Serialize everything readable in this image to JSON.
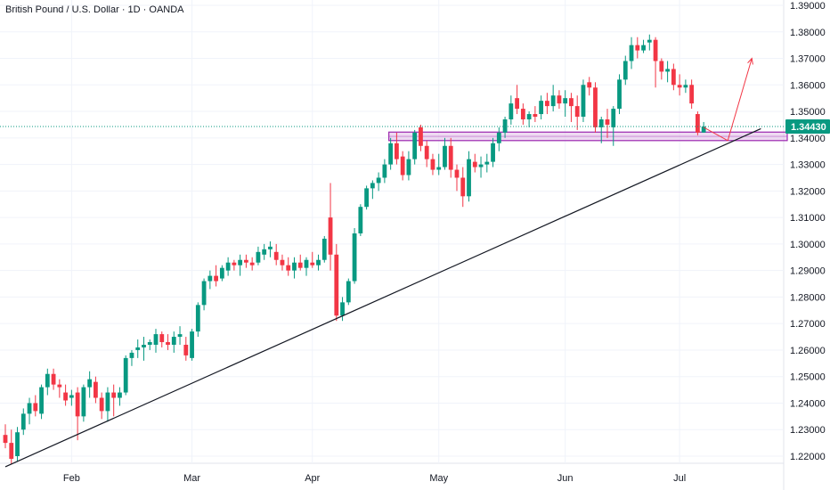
{
  "header": {
    "title": "British Pound / U.S. Dollar · 1D · OANDA"
  },
  "colors": {
    "up": "#089981",
    "down": "#f23645",
    "zone_fill": "#e1bee7",
    "zone_stroke": "#9c27b0",
    "trendline": "#131722",
    "projection": "#f23645",
    "price_line": "#089981",
    "badge": "#089981",
    "grid": "#f0f3fa"
  },
  "chart_data": {
    "type": "candlestick",
    "symbol": "British Pound / U.S. Dollar",
    "interval": "1D",
    "source": "OANDA",
    "ylim": [
      1.214,
      1.3915
    ],
    "y_ticks": [
      "1.22000",
      "1.23000",
      "1.24000",
      "1.25000",
      "1.26000",
      "1.27000",
      "1.28000",
      "1.29000",
      "1.30000",
      "1.31000",
      "1.32000",
      "1.33000",
      "1.34000",
      "1.35000",
      "1.36000",
      "1.37000",
      "1.38000",
      "1.39000"
    ],
    "x_ticks": [
      {
        "label": "Feb",
        "index": 11
      },
      {
        "label": "Mar",
        "index": 31
      },
      {
        "label": "Apr",
        "index": 51
      },
      {
        "label": "May",
        "index": 72
      },
      {
        "label": "Jun",
        "index": 93
      },
      {
        "label": "Jul",
        "index": 112
      }
    ],
    "candles": [
      [
        1.228,
        1.232,
        1.223,
        1.225
      ],
      [
        1.225,
        1.23,
        1.217,
        1.219
      ],
      [
        1.22,
        1.231,
        1.218,
        1.229
      ],
      [
        1.23,
        1.238,
        1.228,
        1.236
      ],
      [
        1.236,
        1.242,
        1.232,
        1.24
      ],
      [
        1.24,
        1.243,
        1.235,
        1.237
      ],
      [
        1.236,
        1.247,
        1.234,
        1.246
      ],
      [
        1.246,
        1.253,
        1.243,
        1.251
      ],
      [
        1.251,
        1.253,
        1.245,
        1.247
      ],
      [
        1.247,
        1.249,
        1.242,
        1.246
      ],
      [
        1.244,
        1.247,
        1.239,
        1.241
      ],
      [
        1.242,
        1.245,
        1.239,
        1.243
      ],
      [
        1.244,
        1.246,
        1.226,
        1.235
      ],
      [
        1.235,
        1.247,
        1.233,
        1.246
      ],
      [
        1.246,
        1.252,
        1.242,
        1.249
      ],
      [
        1.248,
        1.25,
        1.24,
        1.242
      ],
      [
        1.242,
        1.244,
        1.234,
        1.237
      ],
      [
        1.237,
        1.246,
        1.233,
        1.244
      ],
      [
        1.244,
        1.247,
        1.235,
        1.242
      ],
      [
        1.242,
        1.246,
        1.239,
        1.244
      ],
      [
        1.244,
        1.258,
        1.243,
        1.257
      ],
      [
        1.257,
        1.26,
        1.254,
        1.259
      ],
      [
        1.26,
        1.264,
        1.257,
        1.261
      ],
      [
        1.261,
        1.265,
        1.256,
        1.262
      ],
      [
        1.262,
        1.264,
        1.26,
        1.263
      ],
      [
        1.262,
        1.268,
        1.259,
        1.266
      ],
      [
        1.266,
        1.267,
        1.261,
        1.263
      ],
      [
        1.263,
        1.266,
        1.26,
        1.262
      ],
      [
        1.262,
        1.267,
        1.259,
        1.265
      ],
      [
        1.265,
        1.269,
        1.262,
        1.266
      ],
      [
        1.262,
        1.265,
        1.256,
        1.258
      ],
      [
        1.257,
        1.268,
        1.256,
        1.267
      ],
      [
        1.267,
        1.278,
        1.265,
        1.277
      ],
      [
        1.277,
        1.287,
        1.275,
        1.286
      ],
      [
        1.286,
        1.29,
        1.283,
        1.288
      ],
      [
        1.288,
        1.292,
        1.284,
        1.286
      ],
      [
        1.287,
        1.292,
        1.286,
        1.291
      ],
      [
        1.29,
        1.295,
        1.288,
        1.293
      ],
      [
        1.293,
        1.294,
        1.29,
        1.292
      ],
      [
        1.292,
        1.296,
        1.288,
        1.294
      ],
      [
        1.294,
        1.296,
        1.291,
        1.293
      ],
      [
        1.293,
        1.295,
        1.29,
        1.292
      ],
      [
        1.293,
        1.299,
        1.292,
        1.297
      ],
      [
        1.296,
        1.3,
        1.294,
        1.298
      ],
      [
        1.298,
        1.301,
        1.295,
        1.299
      ],
      [
        1.297,
        1.3,
        1.292,
        1.294
      ],
      [
        1.294,
        1.296,
        1.29,
        1.292
      ],
      [
        1.292,
        1.295,
        1.288,
        1.29
      ],
      [
        1.29,
        1.295,
        1.287,
        1.293
      ],
      [
        1.293,
        1.296,
        1.29,
        1.291
      ],
      [
        1.291,
        1.295,
        1.288,
        1.294
      ],
      [
        1.293,
        1.297,
        1.291,
        1.292
      ],
      [
        1.292,
        1.296,
        1.29,
        1.294
      ],
      [
        1.294,
        1.303,
        1.293,
        1.302
      ],
      [
        1.31,
        1.323,
        1.29,
        1.296
      ],
      [
        1.296,
        1.3,
        1.271,
        1.273
      ],
      [
        1.273,
        1.28,
        1.271,
        1.278
      ],
      [
        1.278,
        1.287,
        1.277,
        1.286
      ],
      [
        1.286,
        1.306,
        1.285,
        1.304
      ],
      [
        1.304,
        1.315,
        1.303,
        1.314
      ],
      [
        1.314,
        1.322,
        1.313,
        1.321
      ],
      [
        1.321,
        1.324,
        1.317,
        1.323
      ],
      [
        1.323,
        1.327,
        1.32,
        1.325
      ],
      [
        1.325,
        1.332,
        1.323,
        1.33
      ],
      [
        1.33,
        1.34,
        1.328,
        1.338
      ],
      [
        1.338,
        1.342,
        1.33,
        1.332
      ],
      [
        1.333,
        1.335,
        1.324,
        1.326
      ],
      [
        1.326,
        1.335,
        1.324,
        1.332
      ],
      [
        1.332,
        1.343,
        1.33,
        1.342
      ],
      [
        1.344,
        1.345,
        1.335,
        1.337
      ],
      [
        1.337,
        1.339,
        1.329,
        1.332
      ],
      [
        1.332,
        1.334,
        1.326,
        1.328
      ],
      [
        1.328,
        1.334,
        1.326,
        1.329
      ],
      [
        1.329,
        1.34,
        1.328,
        1.337
      ],
      [
        1.337,
        1.34,
        1.325,
        1.328
      ],
      [
        1.328,
        1.33,
        1.32,
        1.325
      ],
      [
        1.325,
        1.329,
        1.314,
        1.318
      ],
      [
        1.318,
        1.335,
        1.316,
        1.332
      ],
      [
        1.331,
        1.334,
        1.327,
        1.329
      ],
      [
        1.329,
        1.333,
        1.325,
        1.33
      ],
      [
        1.33,
        1.334,
        1.327,
        1.331
      ],
      [
        1.331,
        1.34,
        1.329,
        1.338
      ],
      [
        1.338,
        1.344,
        1.335,
        1.342
      ],
      [
        1.342,
        1.348,
        1.34,
        1.347
      ],
      [
        1.347,
        1.356,
        1.345,
        1.353
      ],
      [
        1.355,
        1.36,
        1.349,
        1.351
      ],
      [
        1.351,
        1.353,
        1.345,
        1.347
      ],
      [
        1.347,
        1.35,
        1.344,
        1.349
      ],
      [
        1.349,
        1.352,
        1.346,
        1.348
      ],
      [
        1.349,
        1.356,
        1.347,
        1.354
      ],
      [
        1.354,
        1.357,
        1.349,
        1.352
      ],
      [
        1.352,
        1.36,
        1.35,
        1.356
      ],
      [
        1.356,
        1.358,
        1.351,
        1.353
      ],
      [
        1.353,
        1.358,
        1.348,
        1.355
      ],
      [
        1.355,
        1.357,
        1.346,
        1.352
      ],
      [
        1.352,
        1.356,
        1.343,
        1.348
      ],
      [
        1.348,
        1.362,
        1.346,
        1.36
      ],
      [
        1.361,
        1.363,
        1.356,
        1.359
      ],
      [
        1.359,
        1.361,
        1.342,
        1.344
      ],
      [
        1.344,
        1.348,
        1.338,
        1.347
      ],
      [
        1.347,
        1.351,
        1.34,
        1.345
      ],
      [
        1.344,
        1.352,
        1.337,
        1.351
      ],
      [
        1.351,
        1.364,
        1.349,
        1.362
      ],
      [
        1.362,
        1.371,
        1.36,
        1.369
      ],
      [
        1.369,
        1.378,
        1.366,
        1.375
      ],
      [
        1.375,
        1.378,
        1.37,
        1.373
      ],
      [
        1.373,
        1.377,
        1.372,
        1.375
      ],
      [
        1.376,
        1.379,
        1.373,
        1.377
      ],
      [
        1.377,
        1.378,
        1.359,
        1.369
      ],
      [
        1.369,
        1.37,
        1.362,
        1.365
      ],
      [
        1.365,
        1.369,
        1.361,
        1.366
      ],
      [
        1.366,
        1.368,
        1.358,
        1.36
      ],
      [
        1.36,
        1.364,
        1.356,
        1.359
      ],
      [
        1.359,
        1.362,
        1.357,
        1.36
      ],
      [
        1.36,
        1.362,
        1.351,
        1.353
      ],
      [
        1.349,
        1.35,
        1.341,
        1.342
      ],
      [
        1.342,
        1.346,
        1.342,
        1.3443
      ]
    ],
    "current_price": "1.34430",
    "zone": {
      "start_index": 64,
      "y_top": 1.3422,
      "y_bottom": 1.339,
      "y_mid": 1.3406
    },
    "trendline": {
      "from": {
        "index": 0,
        "price": 1.216
      },
      "to": {
        "index": 125.5,
        "price": 1.3435
      }
    },
    "projection": [
      {
        "index": 116,
        "price": 1.344
      },
      {
        "index": 120,
        "price": 1.339
      },
      {
        "index": 124,
        "price": 1.37
      }
    ]
  }
}
